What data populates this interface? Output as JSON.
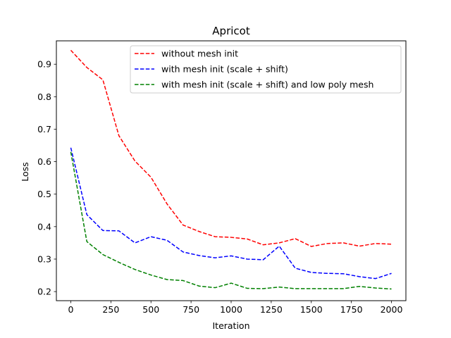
{
  "chart_data": {
    "type": "line",
    "title": "Apricot",
    "xlabel": "Iteration",
    "ylabel": "Loss",
    "xlim": [
      -90,
      2090
    ],
    "ylim": [
      0.172,
      0.972
    ],
    "xticks": [
      0,
      250,
      500,
      750,
      1000,
      1250,
      1500,
      1750,
      2000
    ],
    "xtick_labels": [
      "0",
      "250",
      "500",
      "750",
      "1000",
      "1250",
      "1500",
      "1750",
      "2000"
    ],
    "yticks": [
      0.2,
      0.3,
      0.4,
      0.5,
      0.6,
      0.7,
      0.8,
      0.9
    ],
    "ytick_labels": [
      "0.2",
      "0.3",
      "0.4",
      "0.5",
      "0.6",
      "0.7",
      "0.8",
      "0.9"
    ],
    "grid": false,
    "legend_position": "top-right",
    "x": [
      0,
      100,
      200,
      300,
      400,
      500,
      600,
      700,
      800,
      900,
      1000,
      1100,
      1200,
      1300,
      1400,
      1500,
      1600,
      1700,
      1800,
      1900,
      2000
    ],
    "series": [
      {
        "name": "without mesh init",
        "color": "#ff0000",
        "line_style": "dashed",
        "values": [
          0.943,
          0.89,
          0.852,
          0.68,
          0.602,
          0.552,
          0.47,
          0.405,
          0.385,
          0.369,
          0.367,
          0.362,
          0.344,
          0.35,
          0.363,
          0.339,
          0.348,
          0.35,
          0.34,
          0.348,
          0.346
        ]
      },
      {
        "name": "with mesh init (scale + shift)",
        "color": "#0000ff",
        "line_style": "dashed",
        "values": [
          0.643,
          0.437,
          0.388,
          0.387,
          0.35,
          0.369,
          0.358,
          0.322,
          0.311,
          0.304,
          0.31,
          0.3,
          0.298,
          0.34,
          0.272,
          0.259,
          0.256,
          0.255,
          0.246,
          0.24,
          0.256
        ]
      },
      {
        "name": "with mesh init (scale + shift) and low poly mesh",
        "color": "#008000",
        "line_style": "dashed",
        "values": [
          0.63,
          0.354,
          0.314,
          0.29,
          0.268,
          0.251,
          0.237,
          0.234,
          0.217,
          0.212,
          0.226,
          0.21,
          0.209,
          0.214,
          0.209,
          0.209,
          0.209,
          0.209,
          0.216,
          0.211,
          0.208
        ]
      }
    ]
  }
}
